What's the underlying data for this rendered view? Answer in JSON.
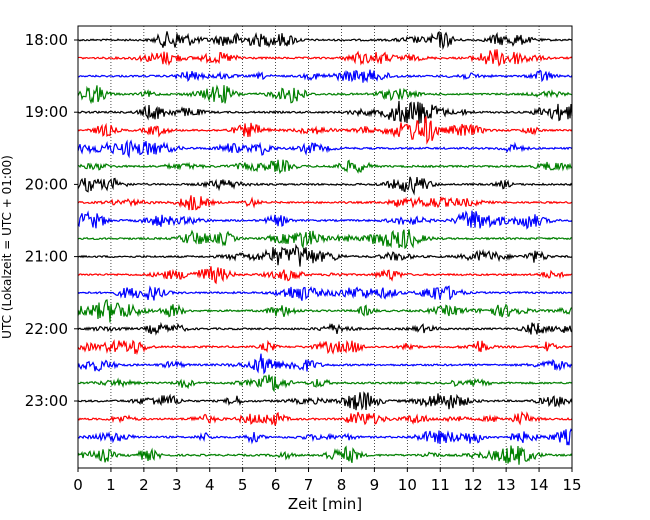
{
  "chart_data": {
    "type": "line",
    "title": "",
    "xlabel": "Zeit  [min]",
    "ylabel": "UTC (Lokalzeit = UTC + 01:00)",
    "xlim": [
      0,
      15
    ],
    "x_ticks": [
      "0",
      "1",
      "2",
      "3",
      "4",
      "5",
      "6",
      "7",
      "8",
      "9",
      "10",
      "11",
      "12",
      "13",
      "14",
      "15"
    ],
    "y_ticks": [
      "18:00",
      "19:00",
      "20:00",
      "21:00",
      "22:00",
      "23:00"
    ],
    "grid": "vertical dotted at each minute",
    "legend": "none",
    "trace_interval_minutes": 15,
    "trace_start": "18:00",
    "trace_count": 24,
    "trace_colors": [
      "#000000",
      "#ff0000",
      "#0000ff",
      "#008000"
    ]
  }
}
